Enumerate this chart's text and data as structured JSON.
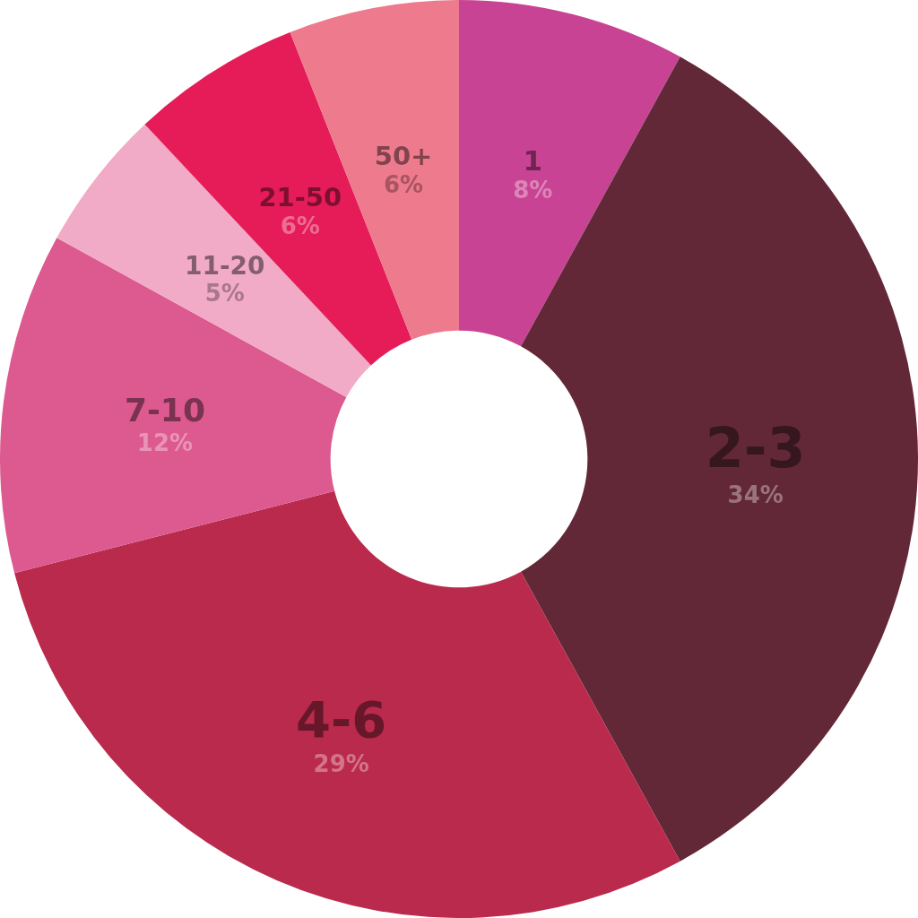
{
  "chart_data": {
    "type": "donut",
    "categories": [
      "1",
      "2-3",
      "4-6",
      "7-10",
      "11-20",
      "21-50",
      "50+"
    ],
    "values": [
      8,
      34,
      29,
      12,
      5,
      6,
      6
    ],
    "value_labels": [
      "8%",
      "34%",
      "29%",
      "12%",
      "5%",
      "6%",
      "6%"
    ],
    "colors": [
      "#c94394",
      "#622838",
      "#b92a4c",
      "#dc5a8f",
      "#f2abc6",
      "#e51c58",
      "#ee7a8d"
    ],
    "legend": false
  }
}
